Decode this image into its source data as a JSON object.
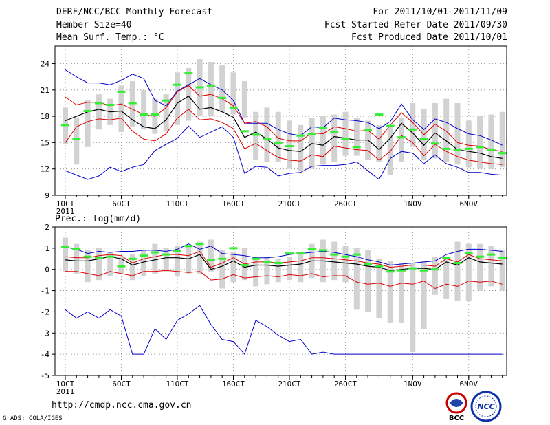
{
  "header": {
    "title": "DERF/NCC/BCC Monthly Forecast",
    "member_size": "Member Size=40",
    "variable": "Mean Surf. Temp.: °C",
    "forecast_period": "For 2011/10/01-2011/11/09",
    "fcst_started": "Fcst Started Refer Date 2011/09/30",
    "fcst_produced": "Fcst Produced Date 2011/10/01"
  },
  "footer": {
    "url": "http://cmdp.ncc.cma.gov.cn",
    "credit": "GrADS: COLA/IGES",
    "logo_bcc": "BCC",
    "logo_ncc": "NCC"
  },
  "colors": {
    "box": "#d2d2d2",
    "mean": "#33ee33",
    "median": "#000000",
    "inner": "#dd0000",
    "outer": "#0000cc",
    "grid": "#888888"
  },
  "chart_data": [
    {
      "id": "temperature",
      "type": "box-plot-time-series",
      "title": "Mean Surf. Temp.: °C",
      "ylim": [
        9,
        26
      ],
      "yticks": [
        9,
        12,
        15,
        18,
        21,
        24
      ],
      "x_tick_labels": [
        "1OCT",
        "6OCT",
        "11OCT",
        "16OCT",
        "21OCT",
        "26OCT",
        "1NOV",
        "6NOV"
      ],
      "x_tick_days": [
        0,
        5,
        10,
        15,
        20,
        25,
        31,
        36
      ],
      "x_sublabel": "2011",
      "days": [
        0,
        1,
        2,
        3,
        4,
        5,
        6,
        7,
        8,
        9,
        10,
        11,
        12,
        13,
        14,
        15,
        16,
        17,
        18,
        19,
        20,
        21,
        22,
        23,
        24,
        25,
        26,
        27,
        28,
        29,
        30,
        31,
        32,
        33,
        34,
        35,
        36,
        37,
        38,
        39
      ],
      "box_low": [
        14.8,
        12.5,
        14.5,
        16.5,
        17.0,
        16.2,
        16.8,
        16.5,
        16.0,
        16.3,
        17.0,
        17.5,
        18.0,
        18.0,
        18.5,
        18.2,
        17.8,
        13.0,
        12.8,
        12.8,
        12.0,
        11.8,
        12.0,
        12.5,
        12.8,
        13.5,
        13.5,
        13.0,
        12.8,
        11.3,
        12.8,
        14.5,
        13.0,
        13.2,
        12.8,
        12.5,
        12.2,
        12.0,
        12.0,
        12.2
      ],
      "box_high": [
        19.0,
        17.8,
        19.8,
        20.5,
        20.0,
        21.5,
        22.0,
        21.0,
        20.0,
        20.5,
        23.0,
        23.5,
        24.5,
        24.2,
        23.8,
        23.0,
        22.0,
        18.5,
        19.0,
        18.5,
        17.5,
        17.0,
        17.8,
        18.0,
        18.2,
        18.5,
        17.8,
        17.5,
        17.0,
        17.0,
        17.8,
        19.5,
        18.8,
        19.5,
        20.0,
        19.5,
        17.5,
        18.0,
        18.2,
        18.5
      ],
      "mean": [
        17.0,
        15.4,
        18.6,
        19.5,
        19.3,
        20.8,
        19.5,
        18.2,
        18.2,
        19.8,
        21.6,
        22.9,
        21.3,
        21.5,
        20.1,
        19.0,
        16.3,
        15.9,
        15.4,
        15.0,
        14.6,
        15.8,
        16.0,
        16.7,
        16.2,
        15.4,
        14.5,
        16.4,
        18.2,
        16.9,
        15.6,
        16.5,
        15.4,
        14.9,
        14.3,
        14.2,
        14.3,
        14.5,
        14.2,
        13.8
      ],
      "median": [
        17.5,
        18.0,
        18.5,
        18.8,
        18.5,
        18.6,
        17.6,
        16.8,
        16.6,
        17.6,
        19.5,
        20.3,
        18.8,
        19.0,
        18.5,
        17.9,
        15.6,
        16.2,
        15.4,
        14.4,
        14.1,
        14.0,
        14.9,
        14.7,
        15.7,
        15.5,
        15.3,
        15.3,
        14.2,
        15.5,
        17.2,
        16.1,
        14.7,
        16.1,
        15.2,
        14.2,
        14.0,
        13.8,
        13.4,
        13.2
      ],
      "red_upper": [
        20.2,
        19.3,
        19.6,
        19.6,
        19.2,
        19.4,
        18.8,
        18.2,
        18.0,
        19.0,
        20.8,
        21.5,
        20.3,
        20.5,
        20.0,
        19.2,
        17.2,
        17.4,
        16.8,
        15.5,
        15.2,
        15.2,
        16.1,
        16.0,
        16.8,
        16.6,
        16.3,
        16.4,
        15.4,
        17.0,
        18.4,
        17.3,
        15.9,
        17.1,
        16.3,
        15.0,
        14.7,
        14.6,
        14.2,
        14.0
      ],
      "red_lower": [
        15.0,
        16.8,
        17.4,
        17.7,
        17.6,
        17.8,
        16.3,
        15.4,
        15.2,
        16.0,
        17.8,
        18.8,
        17.6,
        17.7,
        17.3,
        16.6,
        14.3,
        14.9,
        14.1,
        13.3,
        13.0,
        12.9,
        13.6,
        13.4,
        14.6,
        14.4,
        14.2,
        14.1,
        13.0,
        14.0,
        15.8,
        15.0,
        13.5,
        14.8,
        14.0,
        13.4,
        13.0,
        12.8,
        12.6,
        12.5
      ],
      "blue_upper": [
        23.3,
        22.5,
        21.8,
        21.8,
        21.6,
        22.1,
        22.8,
        22.3,
        19.8,
        19.2,
        20.9,
        21.6,
        22.3,
        21.6,
        21.0,
        19.8,
        17.2,
        17.2,
        17.2,
        16.5,
        16.0,
        15.8,
        16.8,
        16.7,
        17.8,
        17.6,
        17.5,
        17.3,
        16.6,
        17.4,
        19.4,
        17.6,
        16.5,
        17.7,
        17.3,
        16.6,
        16.0,
        15.8,
        15.3,
        14.7
      ],
      "blue_lower": [
        11.8,
        11.3,
        10.8,
        11.2,
        12.2,
        11.7,
        12.2,
        12.5,
        14.1,
        14.8,
        15.5,
        16.9,
        15.6,
        16.2,
        16.8,
        15.6,
        11.5,
        12.3,
        12.2,
        11.2,
        11.5,
        11.6,
        12.3,
        12.4,
        12.4,
        12.5,
        12.8,
        11.8,
        10.8,
        13.2,
        14.0,
        13.8,
        12.6,
        13.6,
        12.6,
        12.2,
        11.6,
        11.6,
        11.4,
        11.3
      ]
    },
    {
      "id": "precipitation",
      "type": "box-plot-time-series",
      "title": "Prec.: log(mm/d)",
      "ylim": [
        -5,
        2
      ],
      "yticks": [
        -5,
        -4,
        -3,
        -2,
        -1,
        0,
        1,
        2
      ],
      "x_tick_labels": [
        "1OCT",
        "6OCT",
        "11OCT",
        "16OCT",
        "21OCT",
        "26OCT",
        "1NOV",
        "6NOV"
      ],
      "x_tick_days": [
        0,
        5,
        10,
        15,
        20,
        25,
        31,
        36
      ],
      "x_sublabel": "2011",
      "days": [
        0,
        1,
        2,
        3,
        4,
        5,
        6,
        7,
        8,
        9,
        10,
        11,
        12,
        13,
        14,
        15,
        16,
        17,
        18,
        19,
        20,
        21,
        22,
        23,
        24,
        25,
        26,
        27,
        28,
        29,
        30,
        31,
        32,
        33,
        34,
        35,
        36,
        37,
        38,
        39
      ],
      "box_low": [
        -0.1,
        -0.2,
        -0.6,
        -0.5,
        -0.3,
        -0.2,
        -0.5,
        -0.3,
        -0.2,
        -0.1,
        -0.3,
        -0.2,
        -0.2,
        -0.1,
        -0.9,
        -0.6,
        -0.5,
        -0.8,
        -0.7,
        -0.6,
        -0.5,
        -0.6,
        -0.4,
        -0.6,
        -0.5,
        -0.6,
        -1.9,
        -2.0,
        -2.3,
        -2.5,
        -2.5,
        -3.9,
        -2.8,
        -1.2,
        -1.4,
        -1.5,
        -1.5,
        -1.0,
        -0.8,
        -1.0
      ],
      "box_high": [
        1.5,
        1.2,
        0.9,
        1.0,
        0.8,
        0.6,
        0.7,
        0.9,
        1.2,
        1.0,
        1.1,
        1.1,
        1.3,
        1.4,
        0.9,
        0.8,
        1.0,
        0.6,
        0.6,
        0.5,
        0.6,
        0.8,
        1.2,
        1.4,
        1.3,
        1.1,
        1.0,
        0.9,
        0.5,
        0.4,
        0.3,
        0.3,
        0.4,
        0.6,
        0.6,
        1.3,
        1.2,
        1.2,
        1.1,
        0.9
      ],
      "mean": [
        1.05,
        0.95,
        0.6,
        0.55,
        0.6,
        0.15,
        0.5,
        0.65,
        0.8,
        0.7,
        0.85,
        1.1,
        1.2,
        0.45,
        0.5,
        1.0,
        0.2,
        0.5,
        0.35,
        0.3,
        0.75,
        0.75,
        0.95,
        0.9,
        0.7,
        0.6,
        0.7,
        0.25,
        0.15,
        -0.1,
        -0.05,
        0.05,
        -0.05,
        0.0,
        0.55,
        0.3,
        0.75,
        0.6,
        0.7,
        0.55
      ],
      "median": [
        0.45,
        0.4,
        0.4,
        0.5,
        0.6,
        0.5,
        0.2,
        0.35,
        0.45,
        0.55,
        0.55,
        0.5,
        0.7,
        0.0,
        0.15,
        0.4,
        0.1,
        0.2,
        0.2,
        0.15,
        0.2,
        0.25,
        0.4,
        0.4,
        0.35,
        0.3,
        0.25,
        0.15,
        0.1,
        -0.05,
        0.0,
        0.05,
        0.05,
        0.0,
        0.35,
        0.2,
        0.55,
        0.35,
        0.3,
        0.25
      ],
      "red_upper": [
        0.6,
        0.55,
        0.55,
        0.65,
        0.7,
        0.65,
        0.3,
        0.5,
        0.6,
        0.7,
        0.7,
        0.65,
        0.85,
        0.1,
        0.3,
        0.55,
        0.25,
        0.35,
        0.35,
        0.3,
        0.35,
        0.4,
        0.55,
        0.55,
        0.5,
        0.45,
        0.4,
        0.3,
        0.25,
        0.1,
        0.15,
        0.2,
        0.2,
        0.15,
        0.5,
        0.35,
        0.7,
        0.5,
        0.45,
        0.4
      ],
      "red_lower": [
        -0.1,
        -0.1,
        -0.2,
        -0.3,
        -0.1,
        -0.2,
        -0.3,
        -0.1,
        -0.1,
        -0.05,
        -0.1,
        -0.15,
        -0.1,
        -0.5,
        -0.45,
        -0.25,
        -0.4,
        -0.35,
        -0.3,
        -0.35,
        -0.25,
        -0.3,
        -0.2,
        -0.35,
        -0.3,
        -0.3,
        -0.6,
        -0.7,
        -0.65,
        -0.8,
        -0.65,
        -0.7,
        -0.55,
        -0.9,
        -0.7,
        -0.8,
        -0.55,
        -0.6,
        -0.55,
        -0.7
      ],
      "blue_upper": [
        1.05,
        0.95,
        0.75,
        0.85,
        0.8,
        0.85,
        0.85,
        0.9,
        0.9,
        0.85,
        0.95,
        1.2,
        0.95,
        1.1,
        0.75,
        0.7,
        0.65,
        0.55,
        0.55,
        0.6,
        0.7,
        0.75,
        0.8,
        0.85,
        0.8,
        0.7,
        0.6,
        0.45,
        0.35,
        0.2,
        0.25,
        0.3,
        0.35,
        0.4,
        0.7,
        0.85,
        0.95,
        0.95,
        0.9,
        0.85
      ],
      "blue_lower": [
        -1.9,
        -2.3,
        -2.0,
        -2.3,
        -1.9,
        -2.2,
        -4.0,
        -4.0,
        -2.8,
        -3.3,
        -2.4,
        -2.1,
        -1.7,
        -2.6,
        -3.3,
        -3.4,
        -4.0,
        -2.4,
        -2.7,
        -3.1,
        -3.4,
        -3.3,
        -4.0,
        -3.9,
        -4.0,
        -4.0,
        -4.0,
        -4.0,
        -4.0,
        -4.0,
        -4.0,
        -4.0,
        -4.0,
        -4.0,
        -4.0,
        -4.0,
        -4.0,
        -4.0,
        -4.0,
        -4.0
      ]
    }
  ]
}
